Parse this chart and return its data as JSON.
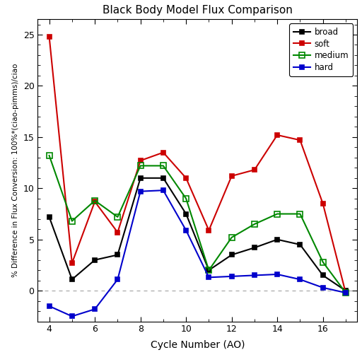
{
  "title": "Black Body Model Flux Comparison",
  "xlabel": "Cycle Number (AO)",
  "ylabel": "% Difference in Flux Conversion: 100%*(ciao-pimms)/ciao",
  "xlim": [
    3.5,
    17.5
  ],
  "ylim": [
    -3,
    26.5
  ],
  "yticks": [
    0,
    5,
    10,
    15,
    20,
    25
  ],
  "xticks": [
    4,
    6,
    8,
    10,
    12,
    14,
    16
  ],
  "series": {
    "broad": {
      "x": [
        4,
        5,
        6,
        7,
        8,
        9,
        10,
        11,
        12,
        13,
        14,
        15,
        16,
        17
      ],
      "y": [
        7.2,
        1.1,
        3.0,
        3.5,
        11.0,
        11.0,
        7.5,
        2.0,
        3.5,
        4.2,
        5.0,
        4.5,
        1.5,
        0.0
      ],
      "color": "#000000",
      "marker": "s",
      "marker_face": "filled",
      "linewidth": 1.5,
      "markersize": 5
    },
    "soft": {
      "x": [
        4,
        5,
        6,
        7,
        8,
        9,
        10,
        11,
        12,
        13,
        14,
        15,
        16,
        17
      ],
      "y": [
        24.8,
        2.7,
        8.7,
        5.7,
        12.7,
        13.5,
        11.0,
        5.9,
        11.2,
        11.8,
        15.2,
        14.7,
        8.5,
        -0.2
      ],
      "color": "#cc0000",
      "marker": "s",
      "marker_face": "filled",
      "linewidth": 1.5,
      "markersize": 5
    },
    "medium": {
      "x": [
        4,
        5,
        6,
        7,
        8,
        9,
        10,
        11,
        12,
        13,
        14,
        15,
        16,
        17
      ],
      "y": [
        13.2,
        6.8,
        8.8,
        7.2,
        12.2,
        12.2,
        9.0,
        2.0,
        5.2,
        6.5,
        7.5,
        7.5,
        2.8,
        -0.2
      ],
      "color": "#008800",
      "marker": "s",
      "marker_face": "none",
      "linewidth": 1.5,
      "markersize": 6
    },
    "hard": {
      "x": [
        4,
        5,
        6,
        7,
        8,
        9,
        10,
        11,
        12,
        13,
        14,
        15,
        16,
        17
      ],
      "y": [
        -1.5,
        -2.5,
        -1.8,
        1.1,
        9.7,
        9.8,
        5.9,
        1.3,
        1.4,
        1.5,
        1.6,
        1.1,
        0.3,
        -0.2
      ],
      "color": "#0000cc",
      "marker": "s",
      "marker_face": "filled",
      "linewidth": 1.5,
      "markersize": 5
    }
  },
  "legend_order": [
    "broad",
    "soft",
    "medium",
    "hard"
  ],
  "background_color": "#ffffff",
  "zero_line_color": "#aaaaaa"
}
